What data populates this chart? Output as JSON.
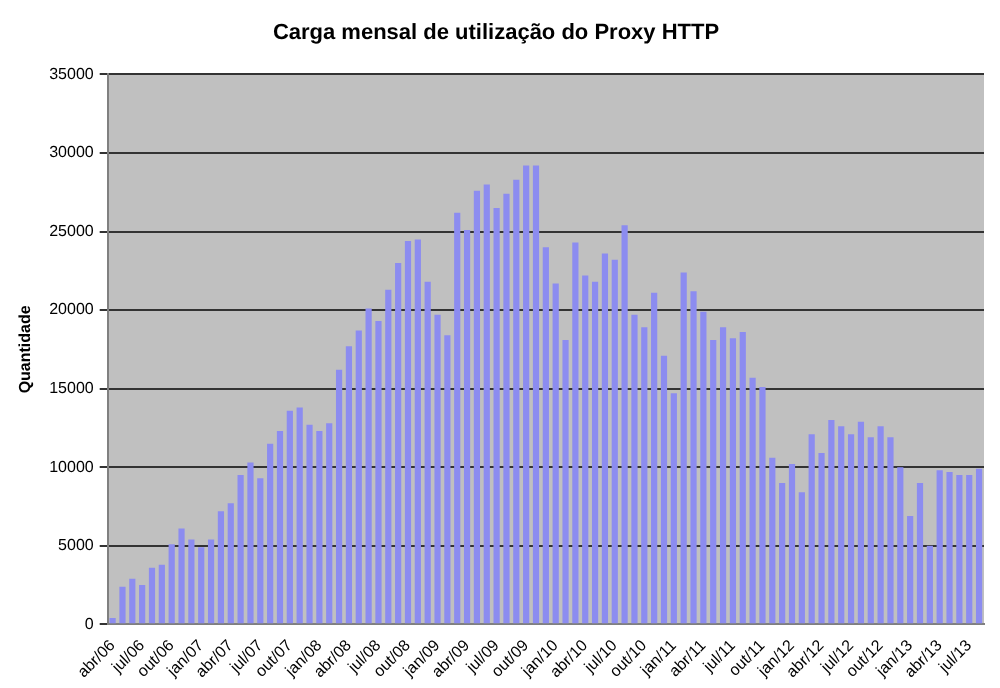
{
  "chart_data": {
    "type": "bar",
    "title": "Carga mensal de utilização do Proxy HTTP",
    "ylabel": "Quantidade",
    "categories": [
      "abr/06",
      null,
      null,
      "jul/06",
      null,
      null,
      "out/06",
      null,
      null,
      "jan/07",
      null,
      null,
      "abr/07",
      null,
      null,
      "jul/07",
      null,
      null,
      "out/07",
      null,
      null,
      "jan/08",
      null,
      null,
      "abr/08",
      null,
      null,
      "jul/08",
      null,
      null,
      "out/08",
      null,
      null,
      "jan/09",
      null,
      null,
      "abr/09",
      null,
      null,
      "jul/09",
      null,
      null,
      "out/09",
      null,
      null,
      "jan/10",
      null,
      null,
      "abr/10",
      null,
      null,
      "jul/10",
      null,
      null,
      "out/10",
      null,
      null,
      "jan/11",
      null,
      null,
      "abr/11",
      null,
      null,
      "jul/11",
      null,
      null,
      "out/11",
      null,
      null,
      "jan/12",
      null,
      null,
      "abr/12",
      null,
      null,
      "jul/12",
      null,
      null,
      "out/12",
      null,
      null,
      "jan/13",
      null,
      null,
      "abr/13",
      null,
      null,
      "jul/13",
      null
    ],
    "values": [
      400,
      2400,
      2900,
      2500,
      3600,
      3800,
      5100,
      6100,
      5400,
      4900,
      5400,
      7200,
      7700,
      9500,
      10300,
      9300,
      11500,
      12300,
      13600,
      13800,
      12700,
      12300,
      12800,
      16200,
      17700,
      18700,
      20100,
      19300,
      21300,
      23000,
      24400,
      24500,
      21800,
      19700,
      18400,
      26200,
      25100,
      27600,
      28000,
      26500,
      27400,
      28300,
      29200,
      29200,
      24000,
      21700,
      18100,
      24300,
      22200,
      21800,
      23600,
      23200,
      25400,
      19700,
      18900,
      21100,
      17100,
      14700,
      22400,
      21200,
      19900,
      18100,
      18900,
      18200,
      18600,
      15700,
      15100,
      10600,
      9000,
      10200,
      8400,
      12100,
      10900,
      13000,
      12600,
      12100,
      12900,
      11900,
      12600,
      11900,
      10000,
      6900,
      9000,
      5000,
      9800,
      9700,
      9500,
      9500,
      9900
    ],
    "color": "#8c8cf0",
    "ylim": [
      0,
      35000
    ],
    "yticks": [
      0,
      5000,
      10000,
      15000,
      20000,
      25000,
      30000,
      35000
    ],
    "grid": "y"
  }
}
